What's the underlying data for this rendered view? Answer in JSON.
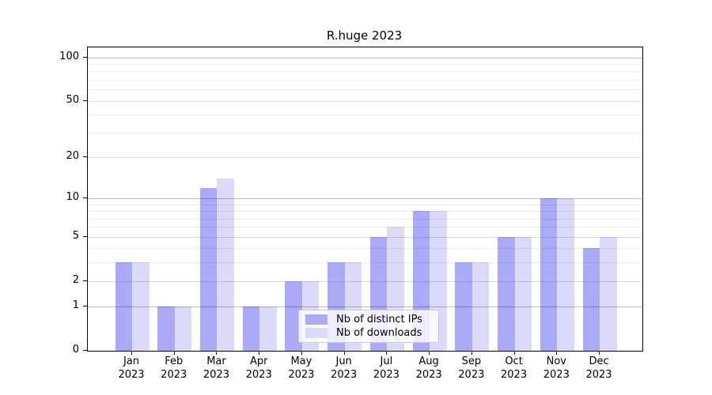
{
  "chart_data": {
    "type": "bar",
    "title": "R.huge 2023",
    "y_scale": "log1p",
    "x_categories": [
      [
        "Jan",
        "2023"
      ],
      [
        "Feb",
        "2023"
      ],
      [
        "Mar",
        "2023"
      ],
      [
        "Apr",
        "2023"
      ],
      [
        "May",
        "2023"
      ],
      [
        "Jun",
        "2023"
      ],
      [
        "Jul",
        "2023"
      ],
      [
        "Aug",
        "2023"
      ],
      [
        "Sep",
        "2023"
      ],
      [
        "Oct",
        "2023"
      ],
      [
        "Nov",
        "2023"
      ],
      [
        "Dec",
        "2023"
      ]
    ],
    "series": [
      {
        "name": "Nb of distinct IPs",
        "color": "#aaaaf8",
        "values": [
          3,
          1,
          12,
          1,
          2,
          3,
          5,
          8,
          3,
          5,
          10,
          4
        ]
      },
      {
        "name": "Nb of downloads",
        "color": "#dbdbf9",
        "values": [
          3,
          1,
          14,
          1,
          2,
          3,
          6,
          8,
          3,
          5,
          10,
          5
        ]
      }
    ],
    "y_major_ticks": [
      0,
      1,
      2,
      5,
      10,
      20,
      50,
      100
    ],
    "y_mid_gridlines": [
      2,
      5,
      20,
      50
    ],
    "y_pow_gridlines": [
      1,
      10,
      100
    ],
    "y_minor_gridlines": [
      3,
      4,
      6,
      7,
      8,
      9,
      30,
      40,
      60,
      70,
      80,
      90
    ],
    "ylim": [
      0,
      117
    ],
    "grid": true,
    "legend_position": "lower center",
    "colors": {
      "axis": "#000000",
      "grid_pow": "rgba(0,0,0,0.25)",
      "grid_mid": "rgba(0,0,0,0.13)",
      "grid_minor": "rgba(0,0,0,0.07)"
    }
  }
}
